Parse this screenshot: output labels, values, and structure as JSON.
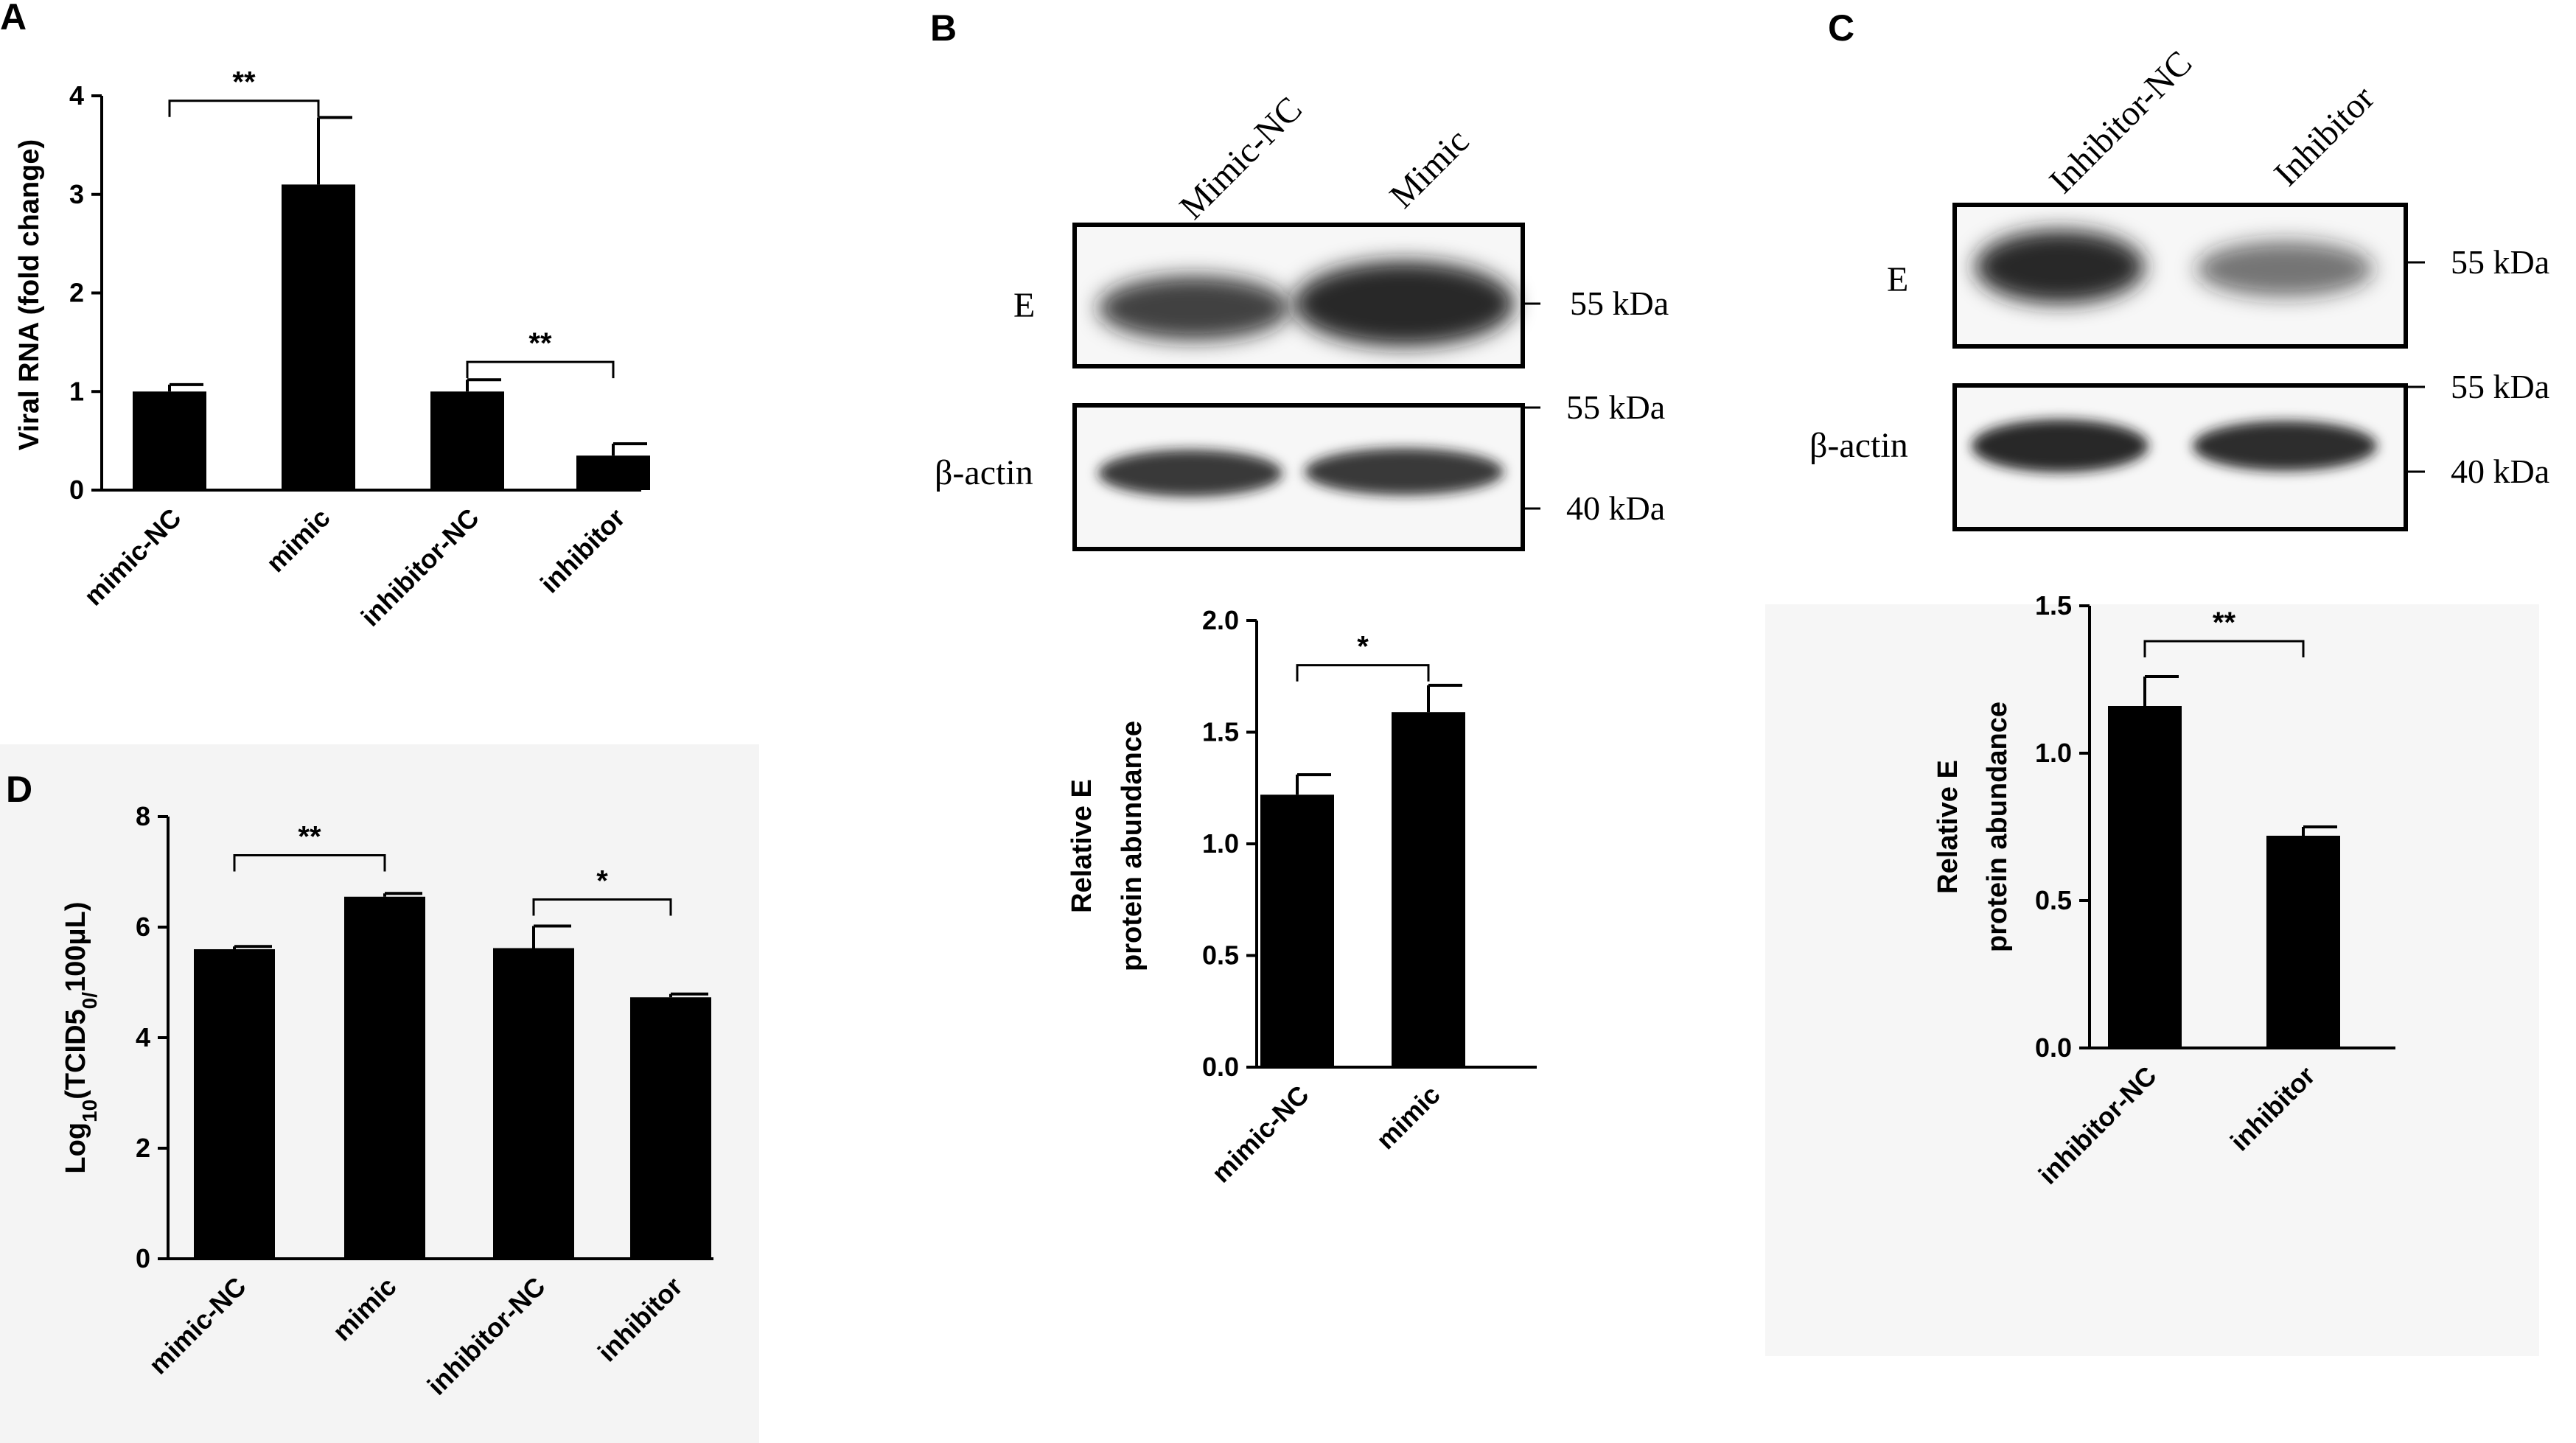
{
  "panel_labels": {
    "a": "A",
    "b": "B",
    "c": "C",
    "d": "D"
  },
  "colors": {
    "bar": "#000000",
    "axis": "#000000",
    "blot_band": "#1a1a1a"
  },
  "blot_b": {
    "lanes": [
      "Mimic-NC",
      "Mimic"
    ],
    "rows": [
      {
        "label": "E",
        "markers": [
          "55 kDa"
        ]
      },
      {
        "label": "β-actin",
        "markers": [
          "55 kDa",
          "40 kDa"
        ]
      }
    ],
    "band_intensity": {
      "E": [
        0.82,
        0.92
      ],
      "beta_actin": [
        0.85,
        0.85
      ]
    }
  },
  "blot_c": {
    "lanes": [
      "Inhibitor-NC",
      "Inhibitor"
    ],
    "rows": [
      {
        "label": "E",
        "markers": [
          "55 kDa"
        ]
      },
      {
        "label": "β-actin",
        "markers": [
          "55 kDa",
          "40 kDa"
        ]
      }
    ],
    "band_intensity": {
      "E": [
        0.95,
        0.6
      ],
      "beta_actin": [
        0.92,
        0.9
      ]
    }
  },
  "chart_data": [
    {
      "id": "A",
      "type": "bar",
      "ylabel": "Viral RNA (fold change)",
      "categories": [
        "mimic-NC",
        "mimic",
        "inhibitor-NC",
        "inhibitor"
      ],
      "values": [
        1.0,
        3.1,
        1.0,
        0.35
      ],
      "errors": [
        0.07,
        0.68,
        0.12,
        0.12
      ],
      "ylim": [
        0,
        4
      ],
      "yticks": [
        "0",
        "1",
        "2",
        "3",
        "4"
      ],
      "significance": [
        {
          "pair": [
            0,
            1
          ],
          "label": "**",
          "y": 3.95
        },
        {
          "pair": [
            2,
            3
          ],
          "label": "**",
          "y": 1.3
        }
      ]
    },
    {
      "id": "B",
      "type": "bar",
      "ylabel_lines": [
        "Relative E",
        "protein abundance"
      ],
      "categories": [
        "mimic-NC",
        "mimic"
      ],
      "values": [
        1.22,
        1.59
      ],
      "errors": [
        0.09,
        0.12
      ],
      "ylim": [
        0,
        2.0
      ],
      "yticks": [
        "0.0",
        "0.5",
        "1.0",
        "1.5",
        "2.0"
      ],
      "significance": [
        {
          "pair": [
            0,
            1
          ],
          "label": "*",
          "y": 1.8
        }
      ]
    },
    {
      "id": "C",
      "type": "bar",
      "ylabel_lines": [
        "Relative E",
        "protein abundance"
      ],
      "categories": [
        "inhibitor-NC",
        "inhibitor"
      ],
      "values": [
        1.16,
        0.72
      ],
      "errors": [
        0.1,
        0.03
      ],
      "ylim": [
        0,
        1.5
      ],
      "yticks": [
        "0.0",
        "0.5",
        "1.0",
        "1.5"
      ],
      "significance": [
        {
          "pair": [
            0,
            1
          ],
          "label": "**",
          "y": 1.38
        }
      ]
    },
    {
      "id": "D",
      "type": "bar",
      "ylabel": "Log10(TCID50/100μL)",
      "categories": [
        "mimic-NC",
        "mimic",
        "inhibitor-NC",
        "inhibitor"
      ],
      "values": [
        5.6,
        6.55,
        5.62,
        4.73
      ],
      "errors": [
        0.05,
        0.06,
        0.4,
        0.06
      ],
      "ylim": [
        0,
        8
      ],
      "yticks": [
        "0",
        "2",
        "4",
        "6",
        "8"
      ],
      "significance": [
        {
          "pair": [
            0,
            1
          ],
          "label": "**",
          "y": 7.3
        },
        {
          "pair": [
            2,
            3
          ],
          "label": "*",
          "y": 6.5
        }
      ]
    }
  ]
}
